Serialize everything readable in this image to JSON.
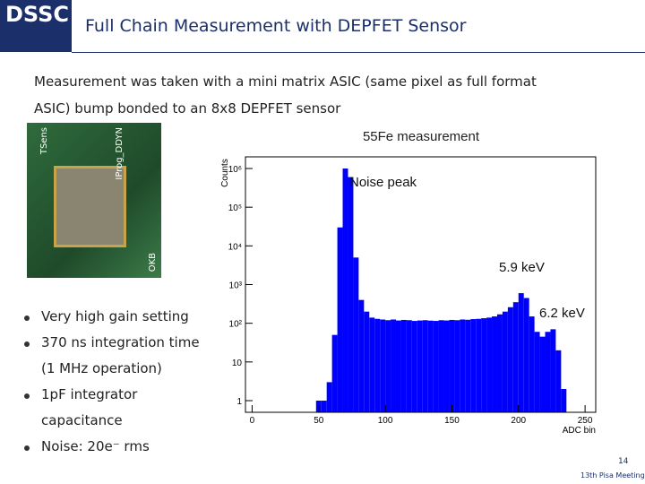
{
  "header": {
    "logo": "DSSC",
    "title": "Full Chain Measurement with DEPFET Sensor"
  },
  "intro": [
    "Measurement was taken with a mini matrix ASIC (same pixel as full format",
    "ASIC) bump bonded to an 8x8 DEPFET sensor"
  ],
  "photo_labels": [
    "TSens",
    "IProg_DDYN",
    "OKB"
  ],
  "bullets": [
    [
      "Very high gain setting"
    ],
    [
      "370 ns integration time",
      "(1 MHz operation)"
    ],
    [
      "1pF integrator",
      "capacitance"
    ],
    [
      "Noise: 20e⁻ rms"
    ]
  ],
  "footer": {
    "page": "14",
    "meeting": "13th Pisa Meeting"
  },
  "chart_data": {
    "type": "histogram",
    "title": "55Fe measurement",
    "x_label": "ADC bin",
    "y_label": "Counts",
    "bins": [
      48,
      52,
      56,
      60,
      64,
      68,
      72,
      76,
      80,
      84,
      88,
      92,
      96,
      100,
      104,
      108,
      112,
      116,
      120,
      124,
      128,
      132,
      136,
      140,
      144,
      148,
      152,
      156,
      160,
      164,
      168,
      172,
      176,
      180,
      184,
      188,
      192,
      196,
      200,
      204,
      208,
      212,
      216,
      220,
      224,
      228,
      232,
      236
    ],
    "counts": [
      1,
      1,
      3,
      50,
      30000,
      1000000,
      600000,
      5000,
      400,
      200,
      140,
      130,
      125,
      120,
      125,
      118,
      122,
      120,
      115,
      118,
      120,
      117,
      115,
      120,
      118,
      122,
      120,
      125,
      123,
      128,
      130,
      135,
      140,
      150,
      170,
      200,
      260,
      350,
      600,
      450,
      150,
      60,
      45,
      60,
      70,
      20,
      2
    ],
    "color": "#0000ff",
    "log_y": true,
    "xlim": [
      -5,
      258
    ],
    "ylim": [
      0.5,
      2000000
    ],
    "xticks": [
      0,
      50,
      100,
      150,
      200,
      250
    ],
    "yticks": [
      1,
      10,
      {
        "value": 100,
        "label": "10²"
      },
      {
        "value": 1000,
        "label": "10³"
      },
      {
        "value": 10000,
        "label": "10⁴"
      },
      {
        "value": 100000,
        "label": "10⁵"
      },
      {
        "value": 1000000,
        "label": "10⁶"
      }
    ],
    "annotations": [
      "Noise peak",
      "5.9 keV",
      "6.2 keV"
    ]
  }
}
